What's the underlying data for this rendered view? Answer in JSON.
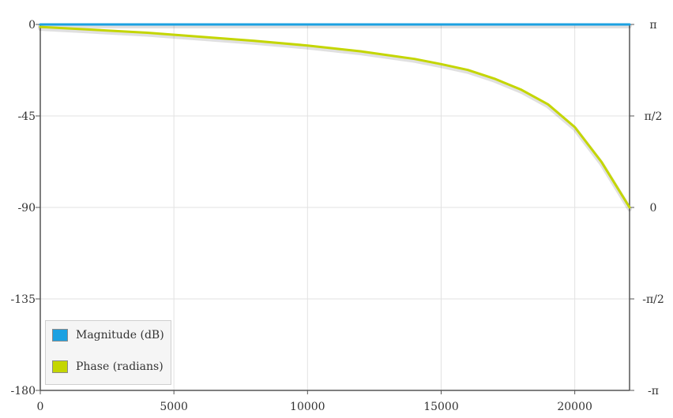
{
  "chart_data": {
    "type": "line",
    "xlim": [
      0,
      22050
    ],
    "ylim": [
      -180,
      0
    ],
    "y2lim": [
      -3.14159,
      3.14159
    ],
    "x_ticks": [
      "0",
      "5000",
      "10000",
      "15000",
      "20000"
    ],
    "x_tick_values": [
      0,
      5000,
      10000,
      15000,
      20000
    ],
    "y_ticks": [
      "0",
      "-45",
      "-90",
      "-135",
      "-180"
    ],
    "y_tick_values": [
      0,
      -45,
      -90,
      -135,
      -180
    ],
    "y2_ticks": [
      "π",
      "π/2",
      "0",
      "-π/2",
      "-π"
    ],
    "y2_tick_values": [
      3.14159,
      1.5708,
      0,
      -1.5708,
      -3.14159
    ],
    "grid": true,
    "legend_position": "bottom-left",
    "series": [
      {
        "name": "Magnitude (dB)",
        "color": "#1ba1e2",
        "axis": "left",
        "x": [
          0,
          22050
        ],
        "y": [
          0,
          0
        ]
      },
      {
        "name": "Phase (radians)",
        "color": "#c4d600",
        "axis": "right",
        "x": [
          0,
          2000,
          4000,
          6000,
          8000,
          10000,
          12000,
          14000,
          15000,
          16000,
          17000,
          18000,
          19000,
          20000,
          21000,
          22050
        ],
        "y": [
          3.1,
          3.05,
          3.0,
          2.93,
          2.86,
          2.78,
          2.68,
          2.55,
          2.46,
          2.36,
          2.21,
          2.02,
          1.77,
          1.38,
          0.78,
          0.0
        ]
      }
    ]
  }
}
